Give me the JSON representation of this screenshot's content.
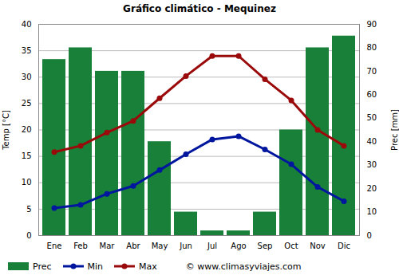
{
  "chart_data": {
    "type": "bar",
    "title": "Gráfico climático - Mequinez",
    "categories": [
      "Ene",
      "Feb",
      "Mar",
      "Abr",
      "May",
      "Jun",
      "Jul",
      "Ago",
      "Sep",
      "Oct",
      "Nov",
      "Dic"
    ],
    "ylabel": "Temp [°C]",
    "y2label": "Prec [mm]",
    "ylim": [
      0,
      40
    ],
    "yticks": [
      0,
      5,
      10,
      15,
      20,
      25,
      30,
      35,
      40
    ],
    "y2lim": [
      0,
      90
    ],
    "y2ticks": [
      0,
      10,
      20,
      30,
      40,
      50,
      60,
      70,
      80,
      90
    ],
    "grid": true,
    "legend": "bottom",
    "series": [
      {
        "name": "Prec",
        "type": "bar",
        "axis": "y2",
        "color": "#188038",
        "values": [
          75,
          80,
          70,
          70,
          40,
          10,
          2,
          2,
          10,
          45,
          80,
          85
        ]
      },
      {
        "name": "Min",
        "type": "line",
        "marker": "circle",
        "color": "#00169e",
        "values": [
          5.2,
          5.8,
          7.9,
          9.4,
          12.4,
          15.4,
          18.2,
          18.8,
          16.3,
          13.5,
          9.2,
          6.5
        ]
      },
      {
        "name": "Max",
        "type": "line",
        "marker": "circle",
        "color": "#9a0a0a",
        "values": [
          15.8,
          17,
          19.5,
          21.7,
          26,
          30.2,
          34,
          34,
          29.6,
          25.6,
          20,
          17
        ]
      }
    ],
    "annotations": [
      "© www.climasyviajes.com"
    ]
  }
}
